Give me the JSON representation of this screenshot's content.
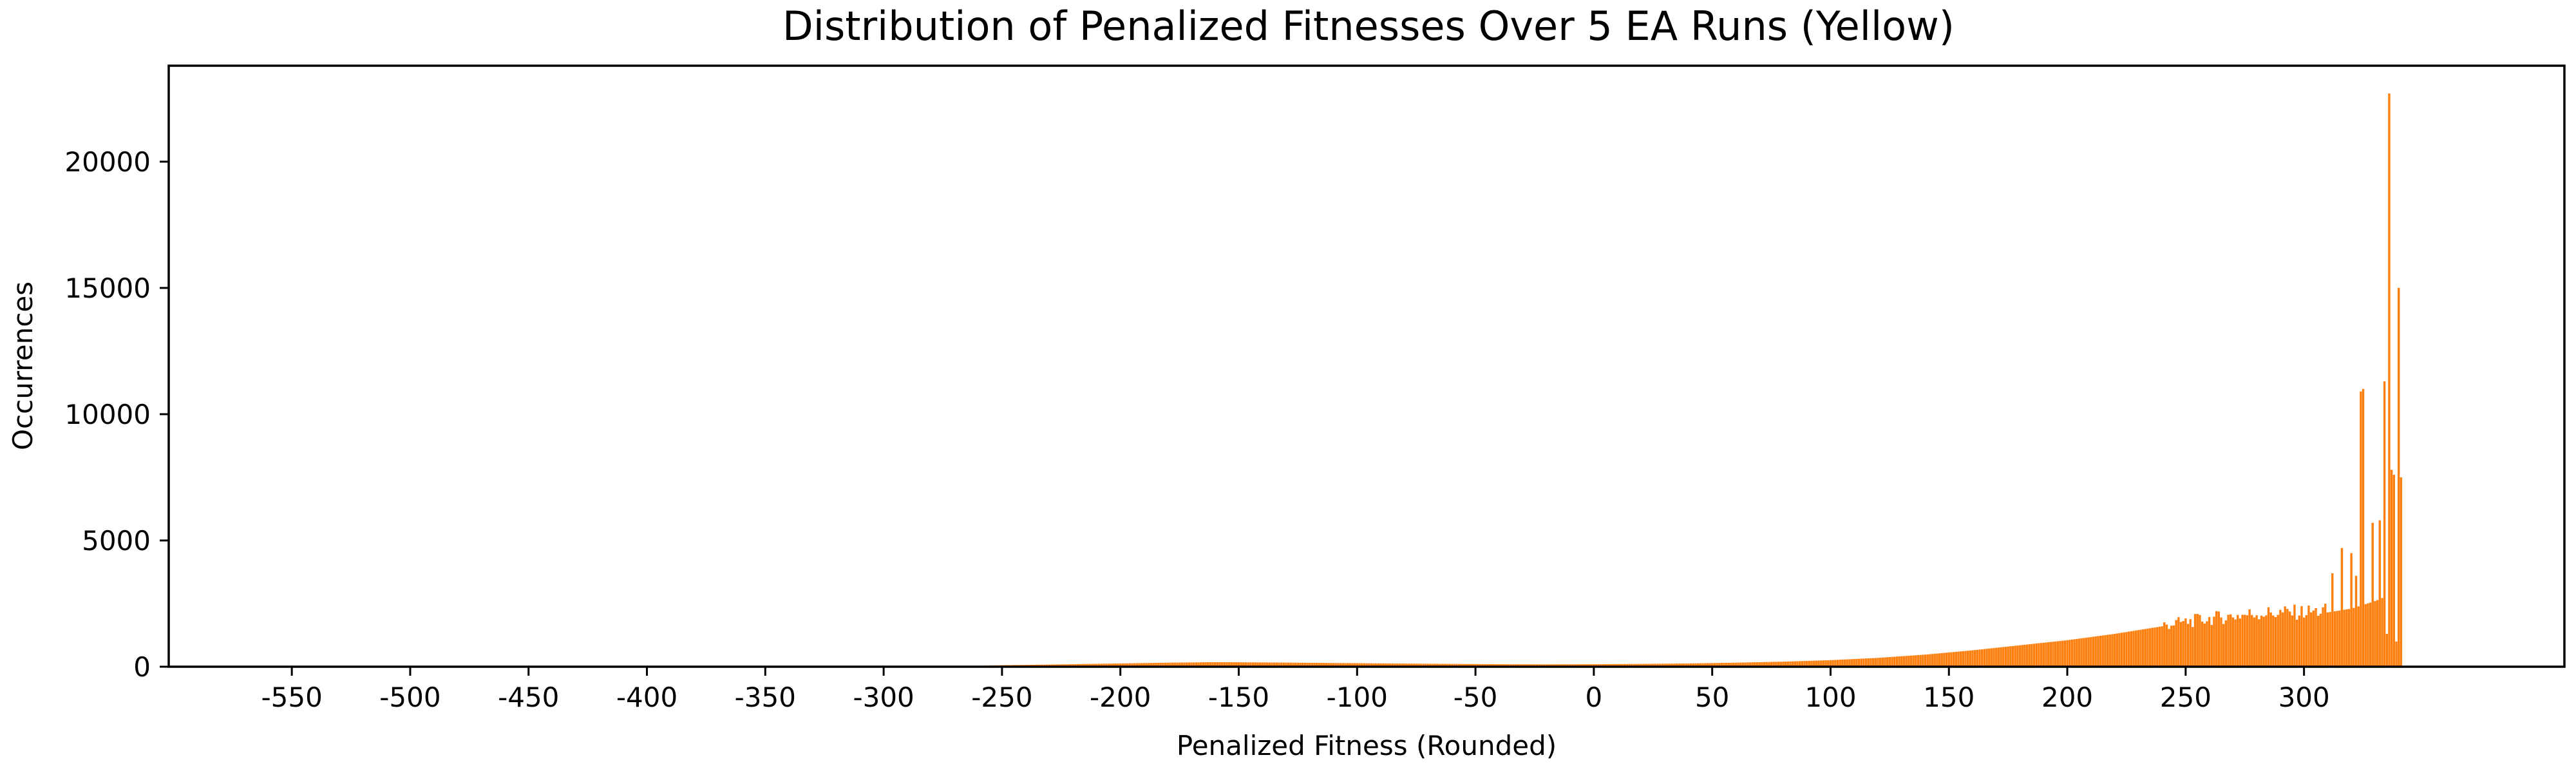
{
  "chart_data": {
    "type": "bar",
    "title": "Distribution of Penalized Fitnesses Over 5 EA Runs (Yellow)",
    "xlabel": "Penalized Fitness (Rounded)",
    "ylabel": "Occurrences",
    "xlim": [
      -602,
      410
    ],
    "ylim": [
      0,
      23800
    ],
    "x_ticks": [
      -550,
      -500,
      -450,
      -400,
      -350,
      -300,
      -250,
      -200,
      -150,
      -100,
      -50,
      0,
      50,
      100,
      150,
      200,
      250,
      300
    ],
    "y_ticks": [
      0,
      5000,
      10000,
      15000,
      20000
    ],
    "color": "#ff7f0e",
    "grid": false,
    "legend": "none",
    "profile_points": [
      [
        -300,
        0
      ],
      [
        -270,
        20
      ],
      [
        -250,
        60
      ],
      [
        -220,
        100
      ],
      [
        -200,
        130
      ],
      [
        -180,
        160
      ],
      [
        -160,
        180
      ],
      [
        -140,
        170
      ],
      [
        -120,
        155
      ],
      [
        -100,
        140
      ],
      [
        -80,
        125
      ],
      [
        -60,
        110
      ],
      [
        -40,
        100
      ],
      [
        -20,
        95
      ],
      [
        0,
        100
      ],
      [
        20,
        110
      ],
      [
        40,
        130
      ],
      [
        60,
        160
      ],
      [
        80,
        200
      ],
      [
        100,
        260
      ],
      [
        120,
        350
      ],
      [
        140,
        480
      ],
      [
        160,
        650
      ],
      [
        180,
        850
      ],
      [
        200,
        1050
      ],
      [
        220,
        1300
      ],
      [
        240,
        1600
      ],
      [
        260,
        1850
      ],
      [
        280,
        2050
      ],
      [
        300,
        2100
      ],
      [
        310,
        2150
      ],
      [
        320,
        2300
      ],
      [
        330,
        2600
      ],
      [
        340,
        3000
      ],
      [
        346,
        3000
      ]
    ],
    "spikes": [
      {
        "x": 312,
        "value": 3700
      },
      {
        "x": 316,
        "value": 4700
      },
      {
        "x": 320,
        "value": 4500
      },
      {
        "x": 322,
        "value": 3600
      },
      {
        "x": 324,
        "value": 10900
      },
      {
        "x": 325,
        "value": 11000
      },
      {
        "x": 329,
        "value": 5700
      },
      {
        "x": 332,
        "value": 5800
      },
      {
        "x": 334,
        "value": 11300
      },
      {
        "x": 335,
        "value": 1300
      },
      {
        "x": 336,
        "value": 22700
      },
      {
        "x": 337,
        "value": 7800
      },
      {
        "x": 338,
        "value": 7600
      },
      {
        "x": 339,
        "value": 1000
      },
      {
        "x": 340,
        "value": 15000
      },
      {
        "x": 341,
        "value": 7500
      }
    ],
    "x_range": [
      -300,
      341
    ]
  }
}
